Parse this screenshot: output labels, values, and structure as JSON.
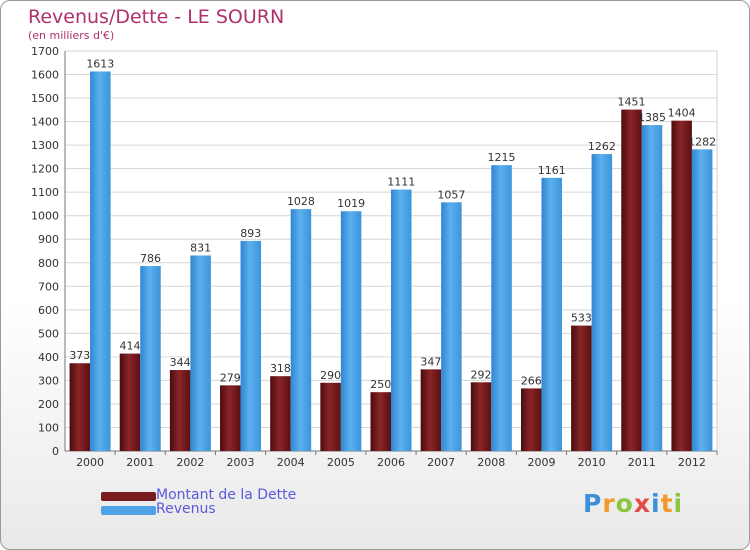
{
  "chart_data": {
    "type": "bar",
    "title": "Revenus/Dette - LE SOURN",
    "subtitle": "(en milliers d'€)",
    "categories": [
      "2000",
      "2001",
      "2002",
      "2003",
      "2004",
      "2005",
      "2006",
      "2007",
      "2008",
      "2009",
      "2010",
      "2011",
      "2012"
    ],
    "series": [
      {
        "name": "Montant de la Dette",
        "color": "#7a1b1d",
        "values": [
          373,
          414,
          344,
          279,
          318,
          290,
          250,
          347,
          292,
          266,
          533,
          1451,
          1404
        ]
      },
      {
        "name": "Revenus",
        "color": "#4ea3e6",
        "values": [
          1613,
          786,
          831,
          893,
          1028,
          1019,
          1111,
          1057,
          1215,
          1161,
          1262,
          1385,
          1282
        ]
      }
    ],
    "yticks": [
      "0",
      "100",
      "200",
      "300",
      "400",
      "500",
      "600",
      "700",
      "800",
      "900",
      "1000",
      "1100",
      "1200",
      "1300",
      "1400",
      "1500",
      "1600",
      "1700"
    ],
    "ylim": [
      0,
      1700
    ],
    "grid": true,
    "legend": "bottom-left"
  },
  "logo": {
    "text": "Proxiti",
    "letters": [
      "P",
      "r",
      "o",
      "x",
      "i",
      "t",
      "i"
    ],
    "colors": [
      "#3d8fd8",
      "#f19a27",
      "#8cc63f",
      "#e34b4b",
      "#3d8fd8",
      "#f19a27",
      "#8cc63f"
    ]
  }
}
